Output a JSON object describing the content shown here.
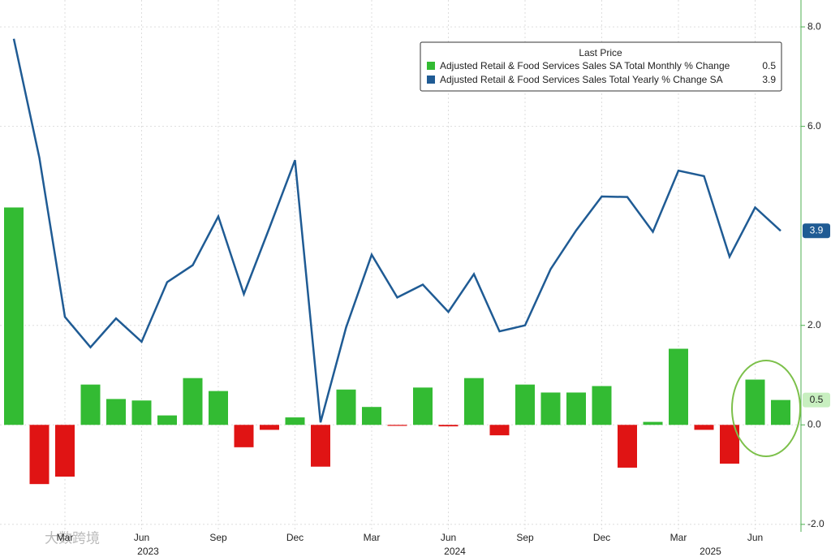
{
  "chart_data": {
    "type": "bar",
    "legend_title": "Last Price",
    "legend_position": "upper right",
    "watermark": "大数跨境",
    "categories": [
      null,
      null,
      "Mar",
      null,
      null,
      "Jun",
      null,
      null,
      "Sep",
      null,
      null,
      "Dec",
      null,
      null,
      "Mar",
      null,
      null,
      "Jun",
      null,
      null,
      "Sep",
      null,
      null,
      "Dec",
      null,
      null,
      "Mar",
      null,
      null,
      "Jun",
      null
    ],
    "year_labels": [
      null,
      null,
      null,
      null,
      null,
      "2023",
      null,
      null,
      null,
      null,
      null,
      null,
      null,
      null,
      null,
      null,
      null,
      "2024",
      null,
      null,
      null,
      null,
      null,
      null,
      null,
      null,
      null,
      "2025",
      null,
      null,
      null
    ],
    "series": [
      {
        "name": "Adjusted Retail & Food Services Sales SA Total Monthly % Change",
        "type": "bar",
        "color": "#33bb33",
        "negative_color": "#e01414",
        "values": [
          4.37,
          -1.19,
          -1.04,
          0.81,
          0.52,
          0.49,
          0.19,
          0.94,
          0.68,
          -0.45,
          -0.1,
          0.15,
          -0.84,
          0.71,
          0.36,
          -0.02,
          0.75,
          -0.03,
          0.94,
          -0.21,
          0.81,
          0.65,
          0.65,
          0.78,
          -0.86,
          0.06,
          1.53,
          -0.1,
          -0.78,
          0.91,
          0.5
        ]
      },
      {
        "name": "Adjusted Retail & Food Services Sales Total Yearly % Change SA",
        "type": "line",
        "color": "#1f5b94",
        "values": [
          7.76,
          5.37,
          2.17,
          1.56,
          2.14,
          1.67,
          2.87,
          3.21,
          4.19,
          2.63,
          3.96,
          5.32,
          0.05,
          1.96,
          3.42,
          2.56,
          2.82,
          2.27,
          3.03,
          1.88,
          2.0,
          3.13,
          3.91,
          4.59,
          4.58,
          3.88,
          5.11,
          5.0,
          3.38,
          4.37,
          3.9
        ]
      }
    ],
    "ylim": [
      -2.15,
      8.54
    ],
    "yticks": [
      {
        "value": -2,
        "label": "-2.0"
      },
      {
        "value": 0,
        "label": "0.0"
      },
      {
        "value": 2,
        "label": "2.0"
      },
      {
        "value": 6,
        "label": "6.0"
      },
      {
        "value": 8,
        "label": "8.0"
      }
    ],
    "grid": true
  }
}
